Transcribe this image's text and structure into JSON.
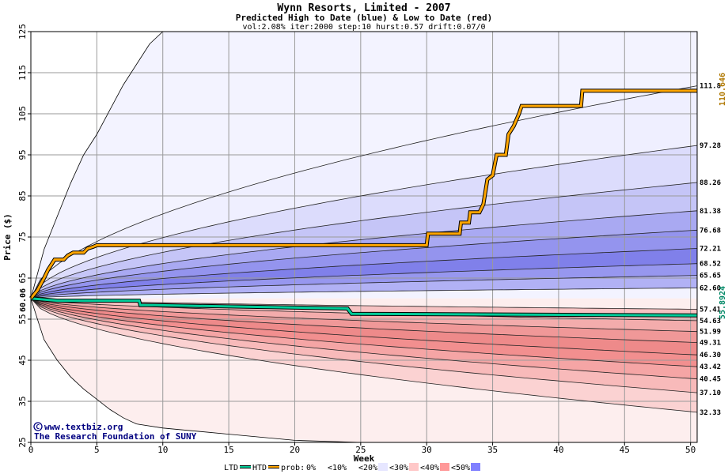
{
  "chart_data": {
    "type": "area",
    "title": "Wynn Resorts, Limited - 2007",
    "subtitle": "Predicted High to Date (blue) &  Low to Date (red)",
    "params": "vol:2.08% iter:2000 step:10 hurst:0.57 drift:0.07/0",
    "xlabel": "Week",
    "ylabel": "Price ($)",
    "xlim": [
      0,
      50.5
    ],
    "ylim": [
      25,
      125
    ],
    "xticks": [
      0,
      5,
      10,
      15,
      20,
      25,
      30,
      35,
      40,
      45,
      50
    ],
    "yticks": [
      25,
      35,
      45,
      55,
      65,
      75,
      85,
      95,
      105,
      115,
      125
    ],
    "grid": true,
    "start_price": 60.06,
    "start_label": "60.06",
    "high_bands_end": [
      111.8,
      97.28,
      88.26,
      81.38,
      76.68,
      72.21,
      68.52,
      65.65,
      62.6
    ],
    "high_band_labels": [
      "111.8",
      "97.28",
      "88.26",
      "81.38",
      "76.68",
      "72.21",
      "68.52",
      "65.65",
      "62.60"
    ],
    "high_band_colors": [
      "#efefff",
      "#dcdcfc",
      "#c5c5f7",
      "#a9a9f2",
      "#9494ee",
      "#8080ea",
      "#9797ef",
      "#b1b1f5"
    ],
    "low_bands_end": [
      57.41,
      54.63,
      51.99,
      49.31,
      46.3,
      43.42,
      40.45,
      37.1,
      32.33
    ],
    "low_band_labels": [
      "57.41",
      "54.63",
      "51.99",
      "49.31",
      "46.30",
      "43.42",
      "40.45",
      "37.10",
      "32.33"
    ],
    "low_band_colors": [
      "#f6c2c2",
      "#f3acac",
      "#f09898",
      "#ee8a8a",
      "#f28f8f",
      "#f5a5a5",
      "#f8baba",
      "#fbd2d2"
    ],
    "extreme_high_points": [
      [
        0,
        60.06
      ],
      [
        1,
        72
      ],
      [
        2,
        80
      ],
      [
        3,
        88
      ],
      [
        4,
        95
      ],
      [
        5,
        100
      ],
      [
        6,
        106
      ],
      [
        7,
        112
      ],
      [
        8,
        117
      ],
      [
        9,
        122
      ],
      [
        10,
        125
      ]
    ],
    "extreme_low_points": [
      [
        0,
        60.06
      ],
      [
        0.5,
        55
      ],
      [
        1,
        50
      ],
      [
        2,
        45
      ],
      [
        3,
        41
      ],
      [
        4,
        38
      ],
      [
        5,
        35.5
      ],
      [
        6,
        33
      ],
      [
        7,
        31
      ],
      [
        8,
        29.5
      ],
      [
        10,
        28.5
      ],
      [
        15,
        27
      ],
      [
        20,
        25.5
      ],
      [
        25,
        25
      ]
    ],
    "htd_series": {
      "name": "HTD",
      "points": [
        [
          0,
          60.06
        ],
        [
          0.5,
          62
        ],
        [
          1,
          65
        ],
        [
          1.3,
          67
        ],
        [
          1.8,
          69.5
        ],
        [
          2.5,
          69.5
        ],
        [
          2.8,
          70.5
        ],
        [
          3.2,
          71.2
        ],
        [
          4,
          71.2
        ],
        [
          4.3,
          72.2
        ],
        [
          4.7,
          72.6
        ],
        [
          5,
          73
        ],
        [
          30,
          73
        ],
        [
          30.1,
          75.8
        ],
        [
          32.5,
          75.8
        ],
        [
          32.6,
          78.5
        ],
        [
          33.2,
          78.5
        ],
        [
          33.3,
          81
        ],
        [
          34,
          81
        ],
        [
          34.3,
          83
        ],
        [
          34.6,
          89
        ],
        [
          35,
          90
        ],
        [
          35.3,
          95
        ],
        [
          36,
          95
        ],
        [
          36.2,
          100
        ],
        [
          36.6,
          102
        ],
        [
          37,
          105
        ],
        [
          37.2,
          106.9
        ],
        [
          41.7,
          106.9
        ],
        [
          41.8,
          110.6
        ],
        [
          50.5,
          110.6
        ]
      ],
      "color": "#ffa500",
      "end_value": 110.646,
      "end_label": "110.646"
    },
    "ltd_series": {
      "name": "LTD",
      "points": [
        [
          0,
          60.06
        ],
        [
          2,
          59.5
        ],
        [
          8.2,
          59.5
        ],
        [
          8.3,
          58.4
        ],
        [
          9.4,
          58.4
        ],
        [
          24,
          57.6
        ],
        [
          24.3,
          56.3
        ],
        [
          50.5,
          55.9
        ]
      ],
      "color": "#00cc99",
      "end_value": 55.8924,
      "end_label": "55.8924"
    },
    "legend": {
      "ltd": "LTD",
      "htd": "HTD",
      "prob_prefix": "prob:",
      "items": [
        {
          "label": "0%",
          "color": "#ffffff"
        },
        {
          "label": "<10%",
          "color": "#ffffff"
        },
        {
          "label": "<20%",
          "color": "#e6e6ff"
        },
        {
          "label": "<30%",
          "color": "#ffc8c8"
        },
        {
          "label": "<40%",
          "color": "#ff9999"
        },
        {
          "label": "<50%",
          "color": "#8080ff"
        }
      ]
    },
    "credit_line1": "www.textbiz.org",
    "credit_line2": "The Research Foundation of SUNY"
  },
  "colors": {
    "high_outer": "#f3f3ff",
    "low_outer": "#fdeeee",
    "grid": "#9a9a9a",
    "htd_label": "#b07800",
    "ltd_label": "#008866"
  }
}
